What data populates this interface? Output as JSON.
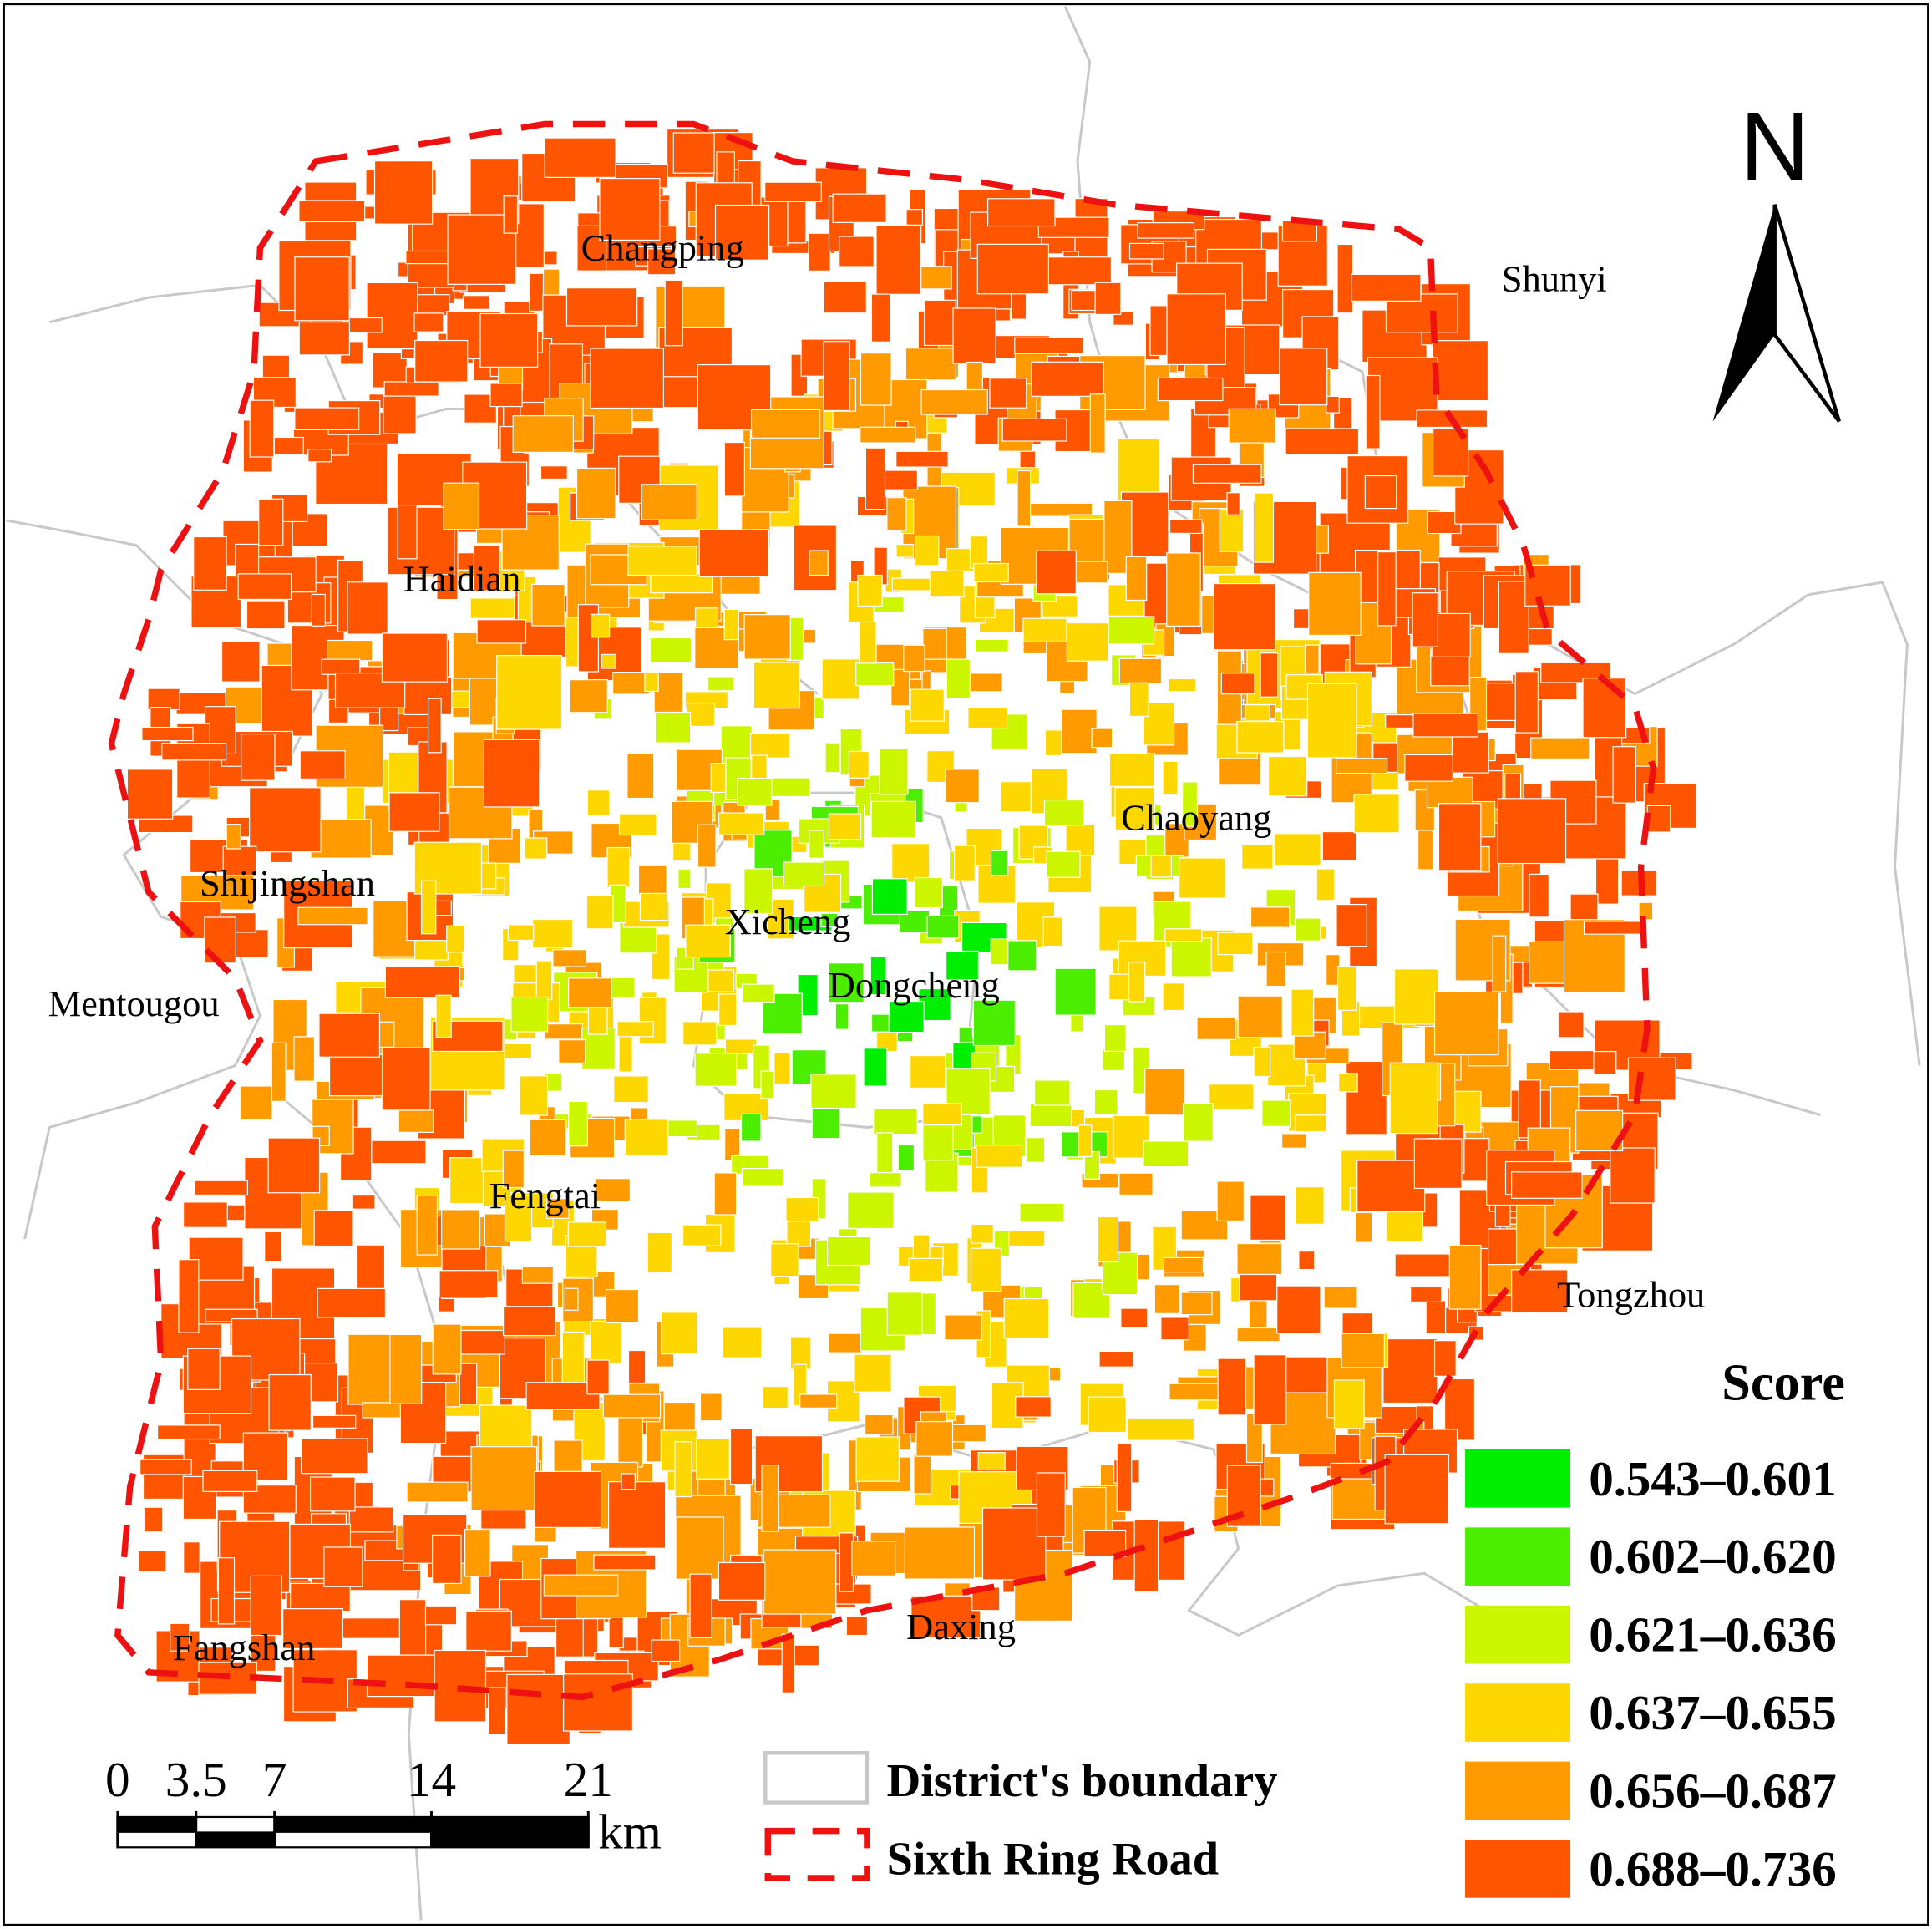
{
  "north": "N",
  "districts": [
    "Changping",
    "Shunyi",
    "Haidian",
    "Chaoyang",
    "Shijingshan",
    "Xicheng",
    "Dongcheng",
    "Mentougou",
    "Fengtai",
    "Tongzhou",
    "Daxing",
    "Fangshan"
  ],
  "legend": {
    "title": "Score",
    "classes": [
      {
        "label": "0.543–0.601",
        "color": "#00ee00"
      },
      {
        "label": "0.602–0.620",
        "color": "#4cee00"
      },
      {
        "label": "0.621–0.636",
        "color": "#ccf500"
      },
      {
        "label": "0.637–0.655",
        "color": "#ffd700"
      },
      {
        "label": "0.656–0.687",
        "color": "#ff9b00"
      },
      {
        "label": "0.688–0.736",
        "color": "#ff5500"
      }
    ]
  },
  "boundary_legend": [
    "District's boundary",
    "Sixth Ring Road"
  ],
  "scale_bar": {
    "ticks": [
      0,
      3.5,
      7,
      14,
      21
    ],
    "unit": "km"
  }
}
